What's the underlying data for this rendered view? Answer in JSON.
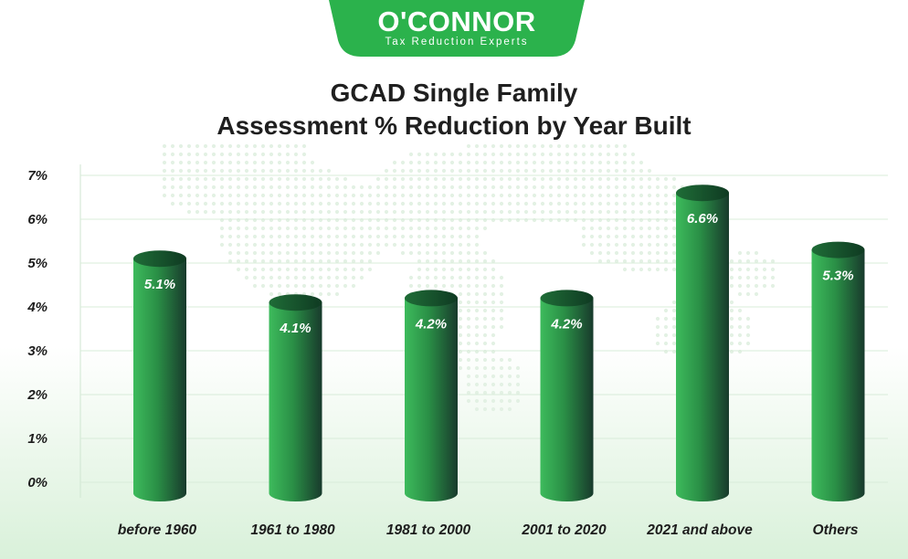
{
  "brand": {
    "name": "O'CONNOR",
    "tagline": "Tax Reduction Experts",
    "color": "#2bb24c"
  },
  "chart_data": {
    "type": "bar",
    "title_line1": "GCAD Single Family",
    "title_line2": "Assessment % Reduction by Year Built",
    "categories": [
      "before 1960",
      "1961 to 1980",
      "1981 to 2000",
      "2001 to 2020",
      "2021 and above",
      "Others"
    ],
    "values": [
      5.1,
      4.1,
      4.2,
      4.2,
      6.6,
      5.3
    ],
    "data_labels": [
      "5.1%",
      "4.1%",
      "4.2%",
      "4.2%",
      "6.6%",
      "5.3%"
    ],
    "y_ticks": [
      "0%",
      "1%",
      "2%",
      "3%",
      "4%",
      "5%",
      "6%",
      "7%"
    ],
    "ylim": [
      0,
      7
    ],
    "grid": true,
    "bar_color_light": "#3dbb5c",
    "bar_color_dark": "#183a2c"
  }
}
